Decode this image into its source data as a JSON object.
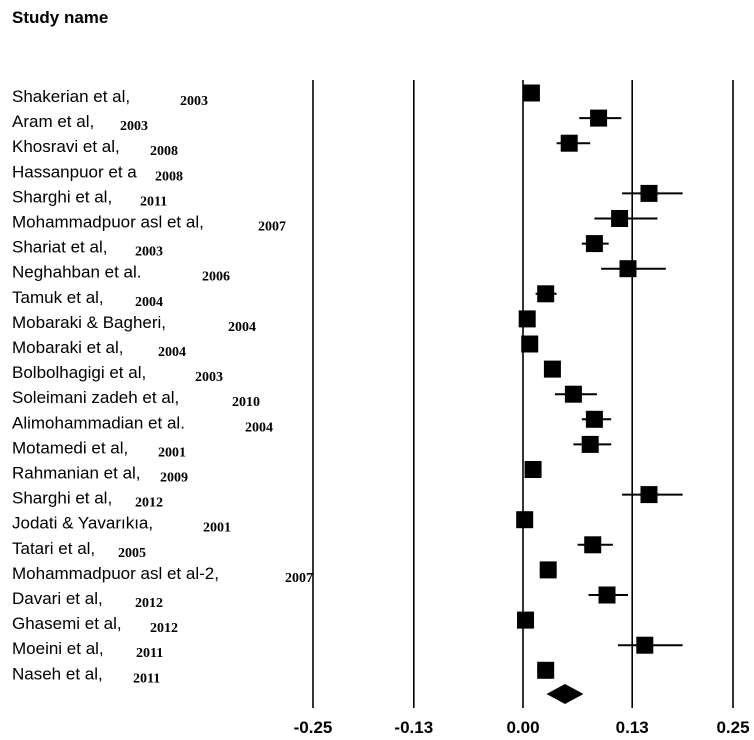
{
  "header": {
    "column_label": "Study name"
  },
  "chart_data": {
    "type": "forest",
    "title": "",
    "xlabel": "",
    "ylabel": "",
    "xlim": [
      -0.25,
      0.25
    ],
    "xticks": [
      -0.25,
      -0.13,
      0.0,
      0.13,
      0.25
    ],
    "xtick_labels": [
      "-0.25",
      "-0.13",
      "0.00",
      "0.13",
      "0.25"
    ],
    "gridlines": true,
    "studies": [
      {
        "name": "Shakerian et al,",
        "year": "2003",
        "estimate": 0.01,
        "lower": 0.0,
        "upper": 0.02
      },
      {
        "name": "Aram et al,",
        "year": "2003",
        "estimate": 0.09,
        "lower": 0.067,
        "upper": 0.117
      },
      {
        "name": "Khosravi et al,",
        "year": "2008",
        "estimate": 0.055,
        "lower": 0.04,
        "upper": 0.08
      },
      {
        "name": "Hassanpuor et a",
        "year": "2008",
        "estimate": null,
        "lower": null,
        "upper": null
      },
      {
        "name": "Sharghi et al,",
        "year": "2011",
        "estimate": 0.15,
        "lower": 0.118,
        "upper": 0.19
      },
      {
        "name": "Mohammadpuor asl et al,",
        "year": "2007",
        "estimate": 0.115,
        "lower": 0.085,
        "upper": 0.16
      },
      {
        "name": "Shariat et al,",
        "year": "2003",
        "estimate": 0.085,
        "lower": 0.07,
        "upper": 0.102
      },
      {
        "name": "Neghahban et al.",
        "year": "2006",
        "estimate": 0.125,
        "lower": 0.093,
        "upper": 0.17
      },
      {
        "name": "Tamuk et al,",
        "year": "2004",
        "estimate": 0.027,
        "lower": 0.015,
        "upper": 0.04
      },
      {
        "name": "Mobaraki & Bagheri,",
        "year": "2004",
        "estimate": 0.005,
        "lower": 0.0,
        "upper": 0.012
      },
      {
        "name": "Mobaraki et al,",
        "year": "2004",
        "estimate": 0.008,
        "lower": 0.0,
        "upper": 0.015
      },
      {
        "name": "Bolbolhagigi et al,",
        "year": "2003",
        "estimate": 0.035,
        "lower": 0.025,
        "upper": 0.045
      },
      {
        "name": "Soleimani zadeh et al,",
        "year": "2010",
        "estimate": 0.06,
        "lower": 0.038,
        "upper": 0.088
      },
      {
        "name": "Alimohammadian et al.",
        "year": "2004",
        "estimate": 0.085,
        "lower": 0.07,
        "upper": 0.105
      },
      {
        "name": "Motamedi et al,",
        "year": "2001",
        "estimate": 0.08,
        "lower": 0.06,
        "upper": 0.105
      },
      {
        "name": "Rahmanian et al,",
        "year": "2009",
        "estimate": 0.012,
        "lower": 0.005,
        "upper": 0.02
      },
      {
        "name": "Sharghi et al,",
        "year": "2012",
        "estimate": 0.15,
        "lower": 0.118,
        "upper": 0.19
      },
      {
        "name": "Jodati & Yavarıkıa,",
        "year": "2001",
        "estimate": 0.002,
        "lower": 0.0,
        "upper": 0.008
      },
      {
        "name": "Tatari et al,",
        "year": "2005",
        "estimate": 0.083,
        "lower": 0.065,
        "upper": 0.107
      },
      {
        "name": "Mohammadpuor asl et al-2,",
        "year": "2007",
        "estimate": 0.03,
        "lower": 0.02,
        "upper": 0.04
      },
      {
        "name": "Davari et al,",
        "year": "2012",
        "estimate": 0.1,
        "lower": 0.078,
        "upper": 0.125
      },
      {
        "name": "Ghasemi et al,",
        "year": "2012",
        "estimate": 0.003,
        "lower": 0.0,
        "upper": 0.01
      },
      {
        "name": "Moeini et al,",
        "year": "2011",
        "estimate": 0.145,
        "lower": 0.113,
        "upper": 0.19
      },
      {
        "name": "Naseh et al,",
        "year": "2011",
        "estimate": 0.027,
        "lower": 0.017,
        "upper": 0.037
      }
    ],
    "summary": {
      "estimate": 0.05,
      "lower": 0.028,
      "upper": 0.072
    },
    "colors": {
      "marker": "#000000",
      "lines": "#000000"
    }
  }
}
